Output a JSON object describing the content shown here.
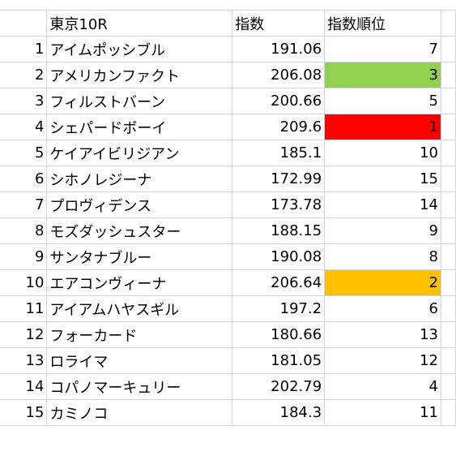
{
  "sheet": {
    "headers": {
      "race": "東京10R",
      "score": "指数",
      "rank": "指数順位"
    },
    "highlight_colors": {
      "rank_1": "#ff0000",
      "rank_2": "#ffc000",
      "rank_3": "#92d050"
    },
    "rows": [
      {
        "idx": "1",
        "name": "アイムポッシブル",
        "score": "191.06",
        "rank": "7"
      },
      {
        "idx": "2",
        "name": "アメリカンファクト",
        "score": "206.08",
        "rank": "3"
      },
      {
        "idx": "3",
        "name": "フィルストバーン",
        "score": "200.66",
        "rank": "5"
      },
      {
        "idx": "4",
        "name": "シェパードボーイ",
        "score": "209.6",
        "rank": "1"
      },
      {
        "idx": "5",
        "name": "ケイアイビリジアン",
        "score": "185.1",
        "rank": "10"
      },
      {
        "idx": "6",
        "name": "シホノレジーナ",
        "score": "172.99",
        "rank": "15"
      },
      {
        "idx": "7",
        "name": "プロヴィデンス",
        "score": "173.78",
        "rank": "14"
      },
      {
        "idx": "8",
        "name": "モズダッシュスター",
        "score": "188.15",
        "rank": "9"
      },
      {
        "idx": "9",
        "name": "サンタナブルー",
        "score": "190.08",
        "rank": "8"
      },
      {
        "idx": "10",
        "name": "エアコンヴィーナ",
        "score": "206.64",
        "rank": "2"
      },
      {
        "idx": "11",
        "name": "アイアムハヤスギル",
        "score": "197.2",
        "rank": "6"
      },
      {
        "idx": "12",
        "name": "フォーカード",
        "score": "180.66",
        "rank": "13"
      },
      {
        "idx": "13",
        "name": "ロライマ",
        "score": "181.05",
        "rank": "12"
      },
      {
        "idx": "14",
        "name": "コパノマーキュリー",
        "score": "202.79",
        "rank": "4"
      },
      {
        "idx": "15",
        "name": "カミノコ",
        "score": "184.3",
        "rank": "11"
      }
    ]
  }
}
